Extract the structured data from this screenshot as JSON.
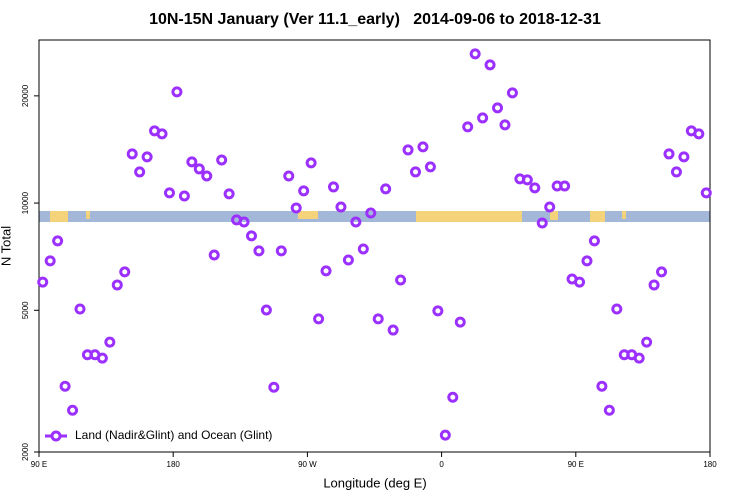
{
  "chart_data": {
    "type": "scatter",
    "title": "10N-15N January (Ver 11.1_early)   2014-09-06 to 2018-12-31",
    "xlabel": "Longitude (deg E)",
    "ylabel": "N Total",
    "xlim": [
      90,
      540
    ],
    "ylim": [
      2000,
      28700
    ],
    "log_y": true,
    "legend": "bottom-left",
    "xticks": [
      {
        "value": 90,
        "label": "90 E"
      },
      180,
      {
        "value": 270,
        "label": "90 W"
      },
      {
        "value": 360,
        "label": "0"
      },
      {
        "value": 450,
        "label": "90 E"
      },
      {
        "value": 540,
        "label": "180"
      }
    ],
    "yticks": [
      2000,
      5000,
      10000,
      20000
    ],
    "series": [
      {
        "name": "Land (Nadir&Glint) and Ocean (Glint)",
        "color": "#9b30ff",
        "x": [
          92.5,
          97.5,
          102.5,
          107.5,
          112.5,
          117.5,
          122.5,
          127.5,
          132.5,
          137.5,
          142.5,
          147.5,
          152.5,
          157.5,
          162.5,
          167.5,
          172.5,
          177.5,
          182.5,
          187.5,
          192.5,
          197.5,
          202.5,
          207.5,
          212.5,
          217.5,
          222.5,
          227.5,
          232.5,
          237.5,
          242.5,
          247.5,
          252.5,
          257.5,
          262.5,
          267.5,
          272.5,
          277.5,
          282.5,
          287.5,
          292.5,
          297.5,
          302.5,
          307.5,
          312.5,
          317.5,
          322.5,
          327.5,
          332.5,
          337.5,
          342.5,
          347.5,
          352.5,
          357.5,
          362.5,
          367.5,
          372.5,
          377.5,
          382.5,
          387.5,
          392.5,
          397.5,
          402.5,
          407.5,
          412.5,
          417.5,
          422.5,
          427.5,
          432.5,
          437.5,
          442.5,
          447.5,
          452.5,
          457.5,
          462.5,
          467.5,
          472.5,
          477.5,
          482.5,
          487.5,
          492.5,
          497.5,
          502.5,
          507.5,
          512.5,
          517.5,
          522.5,
          527.5,
          532.5,
          537.5
        ],
        "values": [
          6000,
          6880,
          7830,
          3060,
          2620,
          5040,
          3750,
          3750,
          3670,
          4070,
          5890,
          6410,
          13740,
          12230,
          13480,
          15950,
          15640,
          10680,
          20520,
          10470,
          13050,
          12470,
          11910,
          7150,
          13210,
          10610,
          8970,
          8850,
          8090,
          7340,
          5010,
          3040,
          7340,
          11910,
          9690,
          10820,
          12970,
          4730,
          6450,
          11100,
          9750,
          6920,
          8850,
          7430,
          9380,
          4730,
          10960,
          4400,
          6080,
          14100,
          12230,
          14380,
          12640,
          4980,
          2230,
          2850,
          4630,
          16370,
          26240,
          17340,
          24440,
          18500,
          16580,
          20390,
          11690,
          11620,
          11030,
          8790,
          9750,
          11170,
          11170,
          6120,
          6000,
          6880,
          7830,
          3060,
          2620,
          5040,
          3750,
          3750,
          3670,
          4070,
          5890,
          6410,
          13740,
          12230,
          13480,
          15950,
          15640,
          10680
        ]
      }
    ]
  }
}
